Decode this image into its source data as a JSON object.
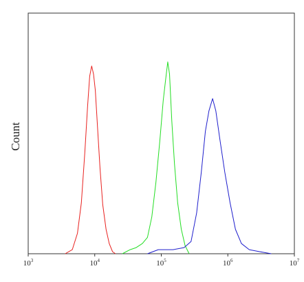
{
  "chart_data": {
    "type": "line",
    "title": "",
    "xlabel": "",
    "ylabel": "Count",
    "x_scale": "log",
    "xlim": [
      1000,
      10000000
    ],
    "ylim": [
      0,
      1
    ],
    "grid": false,
    "legend": "none",
    "x_ticks": [
      {
        "value": 1000,
        "base": "10",
        "exp": "3"
      },
      {
        "value": 10000,
        "base": "10",
        "exp": "4"
      },
      {
        "value": 100000,
        "base": "10",
        "exp": "5"
      },
      {
        "value": 1000000,
        "base": "10",
        "exp": "6"
      },
      {
        "value": 10000000,
        "base": "10",
        "exp": "7"
      }
    ],
    "series": [
      {
        "color": "#e8201e",
        "points": [
          [
            3600,
            0.0
          ],
          [
            4600,
            0.02
          ],
          [
            5500,
            0.1
          ],
          [
            6300,
            0.25
          ],
          [
            7100,
            0.5
          ],
          [
            7800,
            0.72
          ],
          [
            8400,
            0.87
          ],
          [
            9000,
            0.92
          ],
          [
            9600,
            0.88
          ],
          [
            10200,
            0.8
          ],
          [
            11000,
            0.62
          ],
          [
            12000,
            0.42
          ],
          [
            13200,
            0.24
          ],
          [
            14800,
            0.12
          ],
          [
            16500,
            0.05
          ],
          [
            18500,
            0.01
          ],
          [
            20500,
            0.0
          ]
        ]
      },
      {
        "color": "#22dd22",
        "points": [
          [
            26000,
            0.0
          ],
          [
            34000,
            0.02
          ],
          [
            42000,
            0.03
          ],
          [
            52000,
            0.05
          ],
          [
            62000,
            0.08
          ],
          [
            72000,
            0.18
          ],
          [
            83000,
            0.35
          ],
          [
            95000,
            0.55
          ],
          [
            107000,
            0.75
          ],
          [
            116000,
            0.85
          ],
          [
            125000,
            0.94
          ],
          [
            133000,
            0.88
          ],
          [
            144000,
            0.65
          ],
          [
            158000,
            0.44
          ],
          [
            176000,
            0.25
          ],
          [
            200000,
            0.12
          ],
          [
            228000,
            0.04
          ],
          [
            262000,
            0.0
          ]
        ]
      },
      {
        "color": "#1d1dcc",
        "points": [
          [
            62000,
            0.0
          ],
          [
            90000,
            0.02
          ],
          [
            150000,
            0.02
          ],
          [
            220000,
            0.03
          ],
          [
            280000,
            0.06
          ],
          [
            340000,
            0.2
          ],
          [
            400000,
            0.4
          ],
          [
            460000,
            0.6
          ],
          [
            520000,
            0.7
          ],
          [
            590000,
            0.76
          ],
          [
            660000,
            0.7
          ],
          [
            760000,
            0.56
          ],
          [
            900000,
            0.4
          ],
          [
            1080000,
            0.25
          ],
          [
            1300000,
            0.12
          ],
          [
            1600000,
            0.05
          ],
          [
            2100000,
            0.02
          ],
          [
            3000000,
            0.01
          ],
          [
            4500000,
            0.0
          ]
        ]
      }
    ]
  }
}
